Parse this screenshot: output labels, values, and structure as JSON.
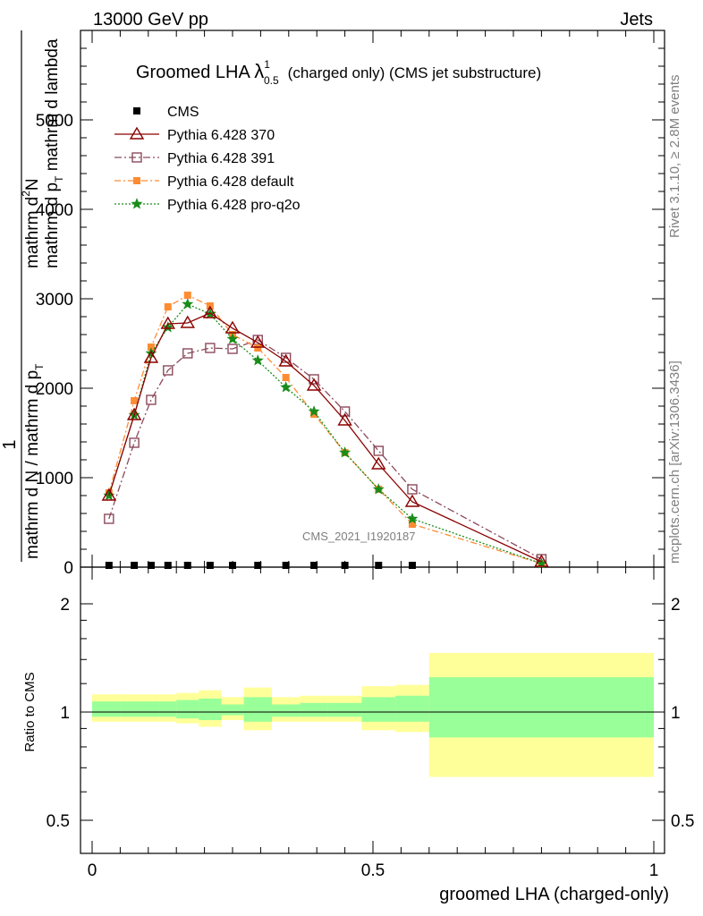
{
  "header": {
    "left": "13000 GeV pp",
    "right": "Jets"
  },
  "main_title": {
    "prefix": "Groomed LHA ",
    "lambda": "λ",
    "sup": "1",
    "sub": "0.5",
    "suffix": "(charged only) (CMS jet substructure)"
  },
  "side_text": {
    "rivet": "Rivet 3.1.10, ≥ 2.8M events",
    "mcplots": "mcplots.cern.ch [arXiv:1306.3436]"
  },
  "watermark": "CMS_2021_I1920187",
  "y_label": {
    "one": "1",
    "denominator": "mathrm d N / mathrm d p",
    "denominator_sub": "T",
    "numerator": "mathrm d",
    "numerator_sup": "2",
    "numerator_rest": "N",
    "num_line2": "mathrm d p",
    "num_line2_sub": "T",
    "num_line2_rest": " mathrm d lambda"
  },
  "ratio_ylabel": "Ratio to CMS",
  "xlabel": "groomed LHA (charged-only)",
  "colors": {
    "p370": "#8b0000",
    "p391": "#8b4a5c",
    "pdefault": "#ff8c33",
    "pq2o": "#1a8c1a",
    "band_outer": "#ffff99",
    "band_inner": "#99ff99"
  },
  "chart_data": {
    "type": "line",
    "x_range": [
      0,
      1
    ],
    "main_y_range": [
      0,
      6000
    ],
    "ratio_y_range": [
      0.5,
      2
    ],
    "main_y_ticks": [
      "0",
      "1000",
      "2000",
      "3000",
      "4000",
      "5000"
    ],
    "x_ticks": [
      "0",
      "0.5",
      "1"
    ],
    "ratio_ticks": [
      "0.5",
      "1",
      "2"
    ],
    "legend_position": "top-left",
    "cms": {
      "name": "CMS",
      "x": [
        0.03,
        0.075,
        0.105,
        0.135,
        0.17,
        0.21,
        0.25,
        0.295,
        0.345,
        0.395,
        0.45,
        0.51,
        0.57
      ],
      "y": [
        0,
        0,
        0,
        0,
        0,
        0,
        0,
        0,
        0,
        0,
        0,
        0,
        0
      ]
    },
    "series": [
      {
        "name": "Pythia 6.428 370",
        "key": "p370",
        "x": [
          0.03,
          0.075,
          0.105,
          0.135,
          0.17,
          0.21,
          0.25,
          0.295,
          0.345,
          0.395,
          0.45,
          0.51,
          0.57,
          0.8
        ],
        "y": [
          800,
          1700,
          2340,
          2720,
          2730,
          2840,
          2670,
          2510,
          2300,
          2030,
          1640,
          1150,
          730,
          60
        ]
      },
      {
        "name": "Pythia 6.428 391",
        "key": "p391",
        "x": [
          0.03,
          0.075,
          0.105,
          0.135,
          0.17,
          0.21,
          0.25,
          0.295,
          0.345,
          0.395,
          0.45,
          0.51,
          0.57,
          0.8
        ],
        "y": [
          540,
          1390,
          1870,
          2200,
          2390,
          2450,
          2440,
          2540,
          2340,
          2100,
          1740,
          1300,
          870,
          90
        ]
      },
      {
        "name": "Pythia 6.428 default",
        "key": "pdefault",
        "x": [
          0.03,
          0.075,
          0.105,
          0.135,
          0.17,
          0.21,
          0.25,
          0.295,
          0.345,
          0.395,
          0.45,
          0.51,
          0.57,
          0.8
        ],
        "y": [
          830,
          1860,
          2460,
          2910,
          3040,
          2920,
          2600,
          2450,
          2120,
          1710,
          1280,
          870,
          480,
          40
        ]
      },
      {
        "name": "Pythia 6.428 pro-q2o",
        "key": "pq2o",
        "x": [
          0.03,
          0.075,
          0.105,
          0.135,
          0.17,
          0.21,
          0.25,
          0.295,
          0.345,
          0.395,
          0.45,
          0.51,
          0.57,
          0.8
        ],
        "y": [
          800,
          1700,
          2390,
          2680,
          2940,
          2830,
          2550,
          2310,
          2010,
          1740,
          1280,
          870,
          540,
          40
        ]
      }
    ],
    "ratio_bands": [
      {
        "x0": 0.0,
        "x1": 0.05,
        "outer": [
          0.94,
          1.12
        ],
        "inner": [
          0.97,
          1.07
        ]
      },
      {
        "x0": 0.05,
        "x1": 0.09,
        "outer": [
          0.94,
          1.12
        ],
        "inner": [
          0.97,
          1.07
        ]
      },
      {
        "x0": 0.09,
        "x1": 0.12,
        "outer": [
          0.94,
          1.12
        ],
        "inner": [
          0.97,
          1.07
        ]
      },
      {
        "x0": 0.12,
        "x1": 0.15,
        "outer": [
          0.94,
          1.12
        ],
        "inner": [
          0.97,
          1.07
        ]
      },
      {
        "x0": 0.15,
        "x1": 0.19,
        "outer": [
          0.93,
          1.13
        ],
        "inner": [
          0.96,
          1.08
        ]
      },
      {
        "x0": 0.19,
        "x1": 0.23,
        "outer": [
          0.91,
          1.15
        ],
        "inner": [
          0.95,
          1.09
        ]
      },
      {
        "x0": 0.23,
        "x1": 0.27,
        "outer": [
          0.95,
          1.1
        ],
        "inner": [
          0.98,
          1.05
        ]
      },
      {
        "x0": 0.27,
        "x1": 0.32,
        "outer": [
          0.89,
          1.17
        ],
        "inner": [
          0.94,
          1.1
        ]
      },
      {
        "x0": 0.32,
        "x1": 0.37,
        "outer": [
          0.94,
          1.1
        ],
        "inner": [
          0.97,
          1.05
        ]
      },
      {
        "x0": 0.37,
        "x1": 0.42,
        "outer": [
          0.94,
          1.11
        ],
        "inner": [
          0.97,
          1.06
        ]
      },
      {
        "x0": 0.42,
        "x1": 0.48,
        "outer": [
          0.94,
          1.11
        ],
        "inner": [
          0.97,
          1.06
        ]
      },
      {
        "x0": 0.48,
        "x1": 0.54,
        "outer": [
          0.89,
          1.18
        ],
        "inner": [
          0.94,
          1.1
        ]
      },
      {
        "x0": 0.54,
        "x1": 0.6,
        "outer": [
          0.88,
          1.19
        ],
        "inner": [
          0.94,
          1.11
        ]
      },
      {
        "x0": 0.6,
        "x1": 1.0,
        "outer": [
          0.66,
          1.46
        ],
        "inner": [
          0.85,
          1.25
        ]
      }
    ]
  }
}
